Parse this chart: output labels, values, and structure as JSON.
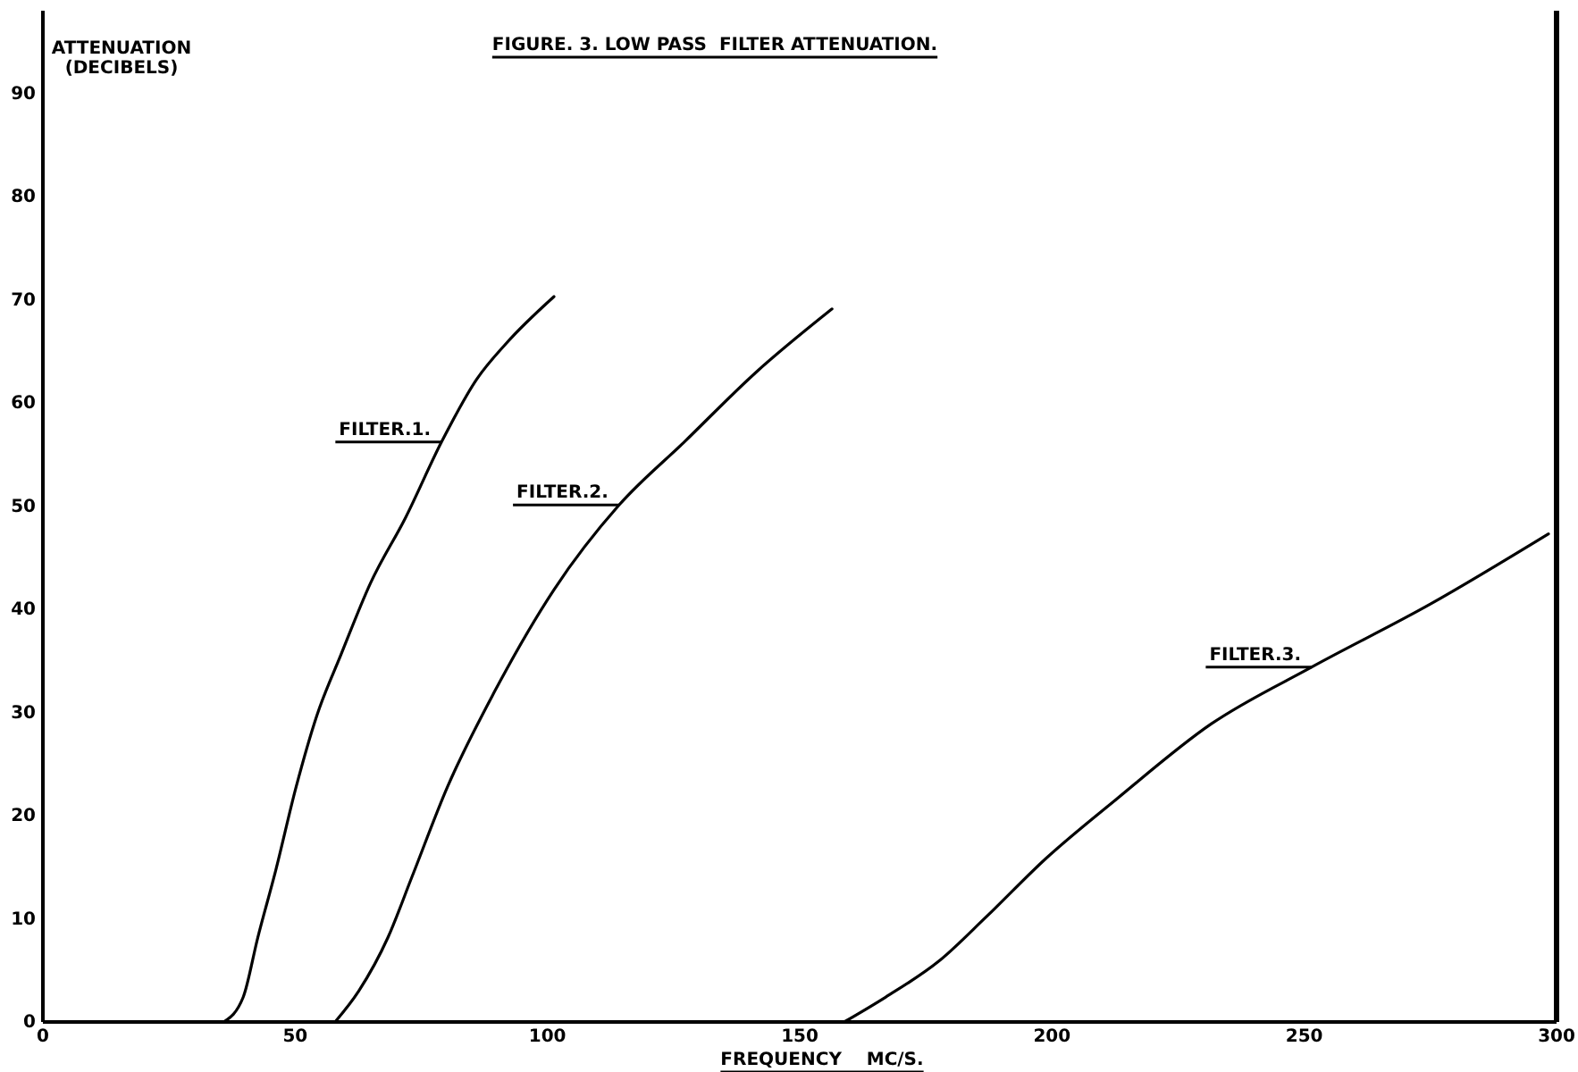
{
  "chart_data": {
    "type": "line",
    "title": "FIGURE. 3. LOW PASS  FILTER ATTENUATION.",
    "xlabel": "FREQUENCY    MC/S.",
    "ylabel": "ATTENUATION (DECIBELS)",
    "xlim": [
      0,
      300
    ],
    "xticks": [
      0,
      50,
      100,
      150,
      200,
      250,
      300
    ],
    "ylim": [
      0,
      98
    ],
    "yticks": [
      0,
      10,
      20,
      30,
      40,
      50,
      60,
      70,
      80,
      90
    ],
    "grid": false,
    "legend": false,
    "marker": "none",
    "line_style": "solid",
    "series": [
      {
        "name": "FILTER.1.",
        "color": "#000000",
        "x": [
          35.8,
          39.7,
          42.6,
          46.1,
          50.2,
          54.3,
          59.0,
          64.9,
          71.9,
          79.0,
          86.0,
          91.9,
          101.3
        ],
        "values": [
          0,
          2.4,
          8.2,
          14.6,
          22.8,
          29.7,
          35.5,
          42.5,
          48.9,
          56.2,
          62.3,
          65.8,
          70.3
        ]
      },
      {
        "name": "FILTER.2.",
        "color": "#000000",
        "x": [
          57.9,
          62.6,
          68.4,
          73.1,
          80.2,
          89.5,
          101.3,
          114.2,
          127.1,
          141.2,
          156.4
        ],
        "values": [
          0,
          3.0,
          8.2,
          14.0,
          22.8,
          32.0,
          41.9,
          50.1,
          56.2,
          62.9,
          69.1
        ]
      },
      {
        "name": "FILTER.3.",
        "color": "#000000",
        "x": [
          158.8,
          167.0,
          177.6,
          187.0,
          198.7,
          212.8,
          231.6,
          251.5,
          275.0,
          298.4
        ],
        "values": [
          0,
          2.4,
          5.9,
          10.2,
          15.8,
          21.6,
          28.9,
          34.4,
          40.5,
          47.3
        ]
      }
    ]
  }
}
